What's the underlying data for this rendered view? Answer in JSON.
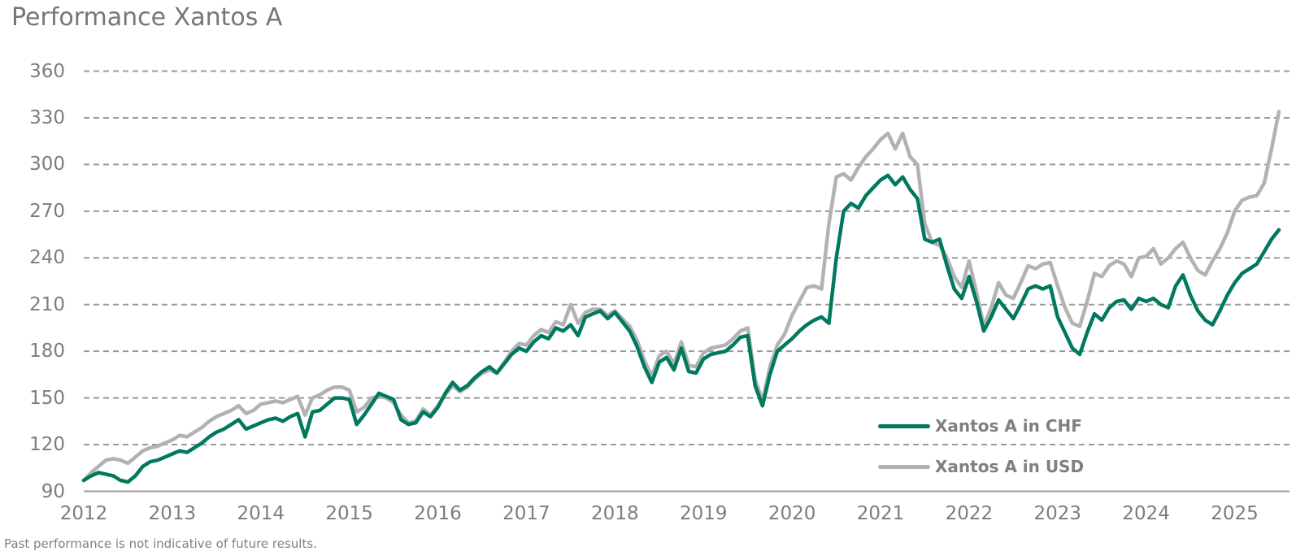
{
  "title": "Performance Xantos A",
  "footnote": "Past performance is not indicative of future results.",
  "legend": [
    {
      "label": "Xantos A in CHF",
      "color": "#00795F"
    },
    {
      "label": "Xantos A in USD",
      "color": "#B2B2B2"
    }
  ],
  "colors": {
    "chf_line": "#00795F",
    "usd_line": "#B2B2B2",
    "gridline": "#999999",
    "axis_line": "#A6A6A6",
    "text": "#7d7d7d"
  },
  "chart_data": {
    "type": "line",
    "title": "Performance Xantos A",
    "xlabel": "",
    "ylabel": "",
    "x_unit": "months",
    "x_start_year": 2012,
    "points_per_year": 12,
    "year_labels": [
      "2012",
      "2013",
      "2014",
      "2015",
      "2016",
      "2017",
      "2018",
      "2019",
      "2020",
      "2021",
      "2022",
      "2023",
      "2024",
      "2025"
    ],
    "y_ticks": [
      360,
      330,
      300,
      270,
      240,
      210,
      180,
      150,
      120,
      90
    ],
    "ylim": [
      90,
      360
    ],
    "grid": "dashed-horizontal",
    "legend_position": "inside-bottom-right",
    "series": [
      {
        "name": "Xantos A in CHF",
        "color": "#00795F",
        "values": [
          97,
          100,
          102,
          101,
          100,
          97,
          96,
          100,
          106,
          109,
          110,
          112,
          114,
          116,
          115,
          118,
          121,
          125,
          128,
          130,
          133,
          136,
          130,
          132,
          134,
          136,
          137,
          135,
          138,
          140,
          125,
          141,
          142,
          146,
          150,
          150,
          149,
          133,
          139,
          146,
          153,
          151,
          149,
          136,
          133,
          134,
          141,
          138,
          144,
          153,
          160,
          155,
          158,
          163,
          167,
          170,
          166,
          172,
          178,
          182,
          180,
          186,
          190,
          188,
          195,
          193,
          197,
          190,
          202,
          204,
          206,
          201,
          205,
          199,
          193,
          183,
          170,
          160,
          173,
          176,
          168,
          182,
          167,
          166,
          175,
          178,
          179,
          180,
          184,
          189,
          190,
          158,
          145,
          165,
          180,
          184,
          188,
          193,
          197,
          200,
          202,
          198,
          240,
          270,
          275,
          272,
          280,
          285,
          290,
          293,
          287,
          292,
          284,
          278,
          252,
          250,
          252,
          235,
          220,
          214,
          228,
          212,
          193,
          202,
          213,
          207,
          201,
          210,
          220,
          222,
          220,
          222,
          202,
          192,
          182,
          178,
          192,
          204,
          200,
          208,
          212,
          213,
          207,
          214,
          212,
          214,
          210,
          208,
          222,
          229,
          216,
          206,
          200,
          197,
          206,
          216,
          224,
          230,
          233,
          236,
          244,
          252,
          258
        ]
      },
      {
        "name": "Xantos A in USD",
        "color": "#B2B2B2",
        "values": [
          97,
          102,
          106,
          110,
          111,
          110,
          108,
          112,
          116,
          118,
          119,
          121,
          123,
          126,
          125,
          128,
          131,
          135,
          138,
          140,
          142,
          145,
          140,
          142,
          146,
          147,
          148,
          147,
          149,
          151,
          139,
          150,
          152,
          155,
          157,
          157,
          155,
          141,
          144,
          150,
          151,
          150,
          147,
          139,
          134,
          135,
          143,
          139,
          145,
          152,
          158,
          154,
          157,
          162,
          166,
          168,
          166,
          173,
          180,
          185,
          184,
          190,
          194,
          192,
          199,
          197,
          210,
          198,
          205,
          207,
          207,
          203,
          206,
          201,
          196,
          187,
          174,
          164,
          177,
          180,
          172,
          186,
          171,
          170,
          179,
          182,
          183,
          184,
          188,
          193,
          195,
          162,
          148,
          170,
          184,
          191,
          203,
          212,
          221,
          222,
          220,
          262,
          292,
          294,
          290,
          298,
          305,
          310,
          316,
          320,
          310,
          320,
          305,
          300,
          262,
          250,
          248,
          240,
          228,
          221,
          238,
          218,
          196,
          208,
          224,
          216,
          214,
          224,
          235,
          233,
          236,
          237,
          222,
          208,
          198,
          196,
          212,
          230,
          228,
          235,
          238,
          236,
          228,
          240,
          241,
          246,
          236,
          240,
          246,
          250,
          240,
          232,
          229,
          238,
          246,
          256,
          270,
          277,
          279,
          280,
          288,
          310,
          334
        ]
      }
    ]
  }
}
